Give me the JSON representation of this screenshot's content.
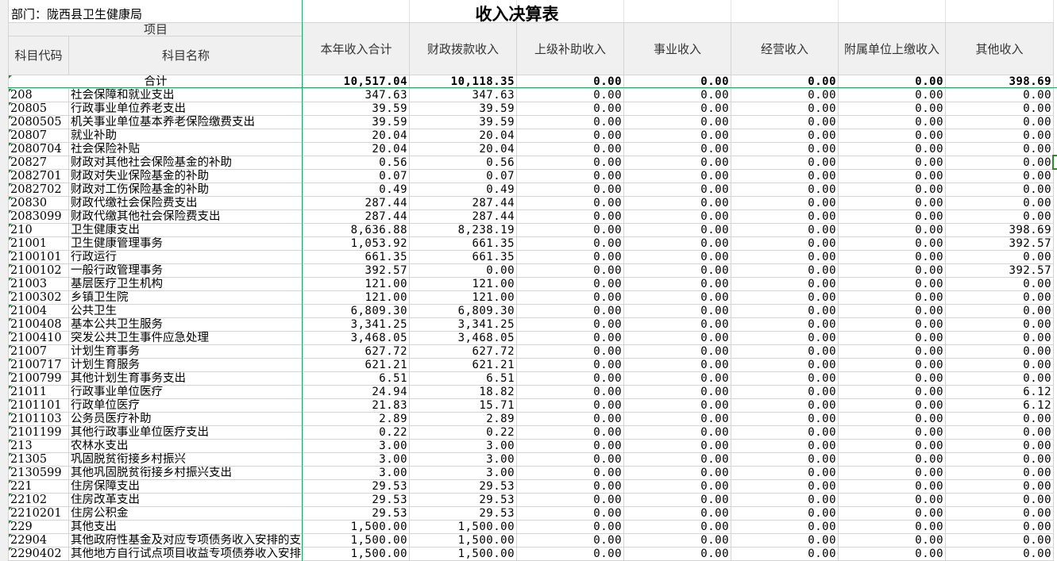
{
  "title": "收入决算表",
  "department": "部门：陇西县卫生健康局",
  "header": {
    "project": "项目",
    "code": "科目代码",
    "name": "科目名称",
    "columns": [
      "本年收入合计",
      "财政拨款收入",
      "上级补助收入",
      "事业收入",
      "经营收入",
      "附属单位上缴收入",
      "其他收入"
    ]
  },
  "total": {
    "label": "合计",
    "values": [
      "10,517.04",
      "10,118.35",
      "0.00",
      "0.00",
      "0.00",
      "0.00",
      "398.69"
    ]
  },
  "rows": [
    [
      "208",
      "社会保障和就业支出",
      "347.63",
      "347.63",
      "0.00",
      "0.00",
      "0.00",
      "0.00",
      "0.00"
    ],
    [
      "20805",
      "行政事业单位养老支出",
      "39.59",
      "39.59",
      "0.00",
      "0.00",
      "0.00",
      "0.00",
      "0.00"
    ],
    [
      "2080505",
      "机关事业单位基本养老保险缴费支出",
      "39.59",
      "39.59",
      "0.00",
      "0.00",
      "0.00",
      "0.00",
      "0.00"
    ],
    [
      "20807",
      "就业补助",
      "20.04",
      "20.04",
      "0.00",
      "0.00",
      "0.00",
      "0.00",
      "0.00"
    ],
    [
      "2080704",
      "社会保险补贴",
      "20.04",
      "20.04",
      "0.00",
      "0.00",
      "0.00",
      "0.00",
      "0.00"
    ],
    [
      "20827",
      "财政对其他社会保险基金的补助",
      "0.56",
      "0.56",
      "0.00",
      "0.00",
      "0.00",
      "0.00",
      "0.00"
    ],
    [
      "2082701",
      "财政对失业保险基金的补助",
      "0.07",
      "0.07",
      "0.00",
      "0.00",
      "0.00",
      "0.00",
      "0.00"
    ],
    [
      "2082702",
      "财政对工伤保险基金的补助",
      "0.49",
      "0.49",
      "0.00",
      "0.00",
      "0.00",
      "0.00",
      "0.00"
    ],
    [
      "20830",
      "财政代缴社会保险费支出",
      "287.44",
      "287.44",
      "0.00",
      "0.00",
      "0.00",
      "0.00",
      "0.00"
    ],
    [
      "2083099",
      "财政代缴其他社会保险费支出",
      "287.44",
      "287.44",
      "0.00",
      "0.00",
      "0.00",
      "0.00",
      "0.00"
    ],
    [
      "210",
      "卫生健康支出",
      "8,636.88",
      "8,238.19",
      "0.00",
      "0.00",
      "0.00",
      "0.00",
      "398.69"
    ],
    [
      "21001",
      "卫生健康管理事务",
      "1,053.92",
      "661.35",
      "0.00",
      "0.00",
      "0.00",
      "0.00",
      "392.57"
    ],
    [
      "2100101",
      "行政运行",
      "661.35",
      "661.35",
      "0.00",
      "0.00",
      "0.00",
      "0.00",
      "0.00"
    ],
    [
      "2100102",
      "一般行政管理事务",
      "392.57",
      "0.00",
      "0.00",
      "0.00",
      "0.00",
      "0.00",
      "392.57"
    ],
    [
      "21003",
      "基层医疗卫生机构",
      "121.00",
      "121.00",
      "0.00",
      "0.00",
      "0.00",
      "0.00",
      "0.00"
    ],
    [
      "2100302",
      "乡镇卫生院",
      "121.00",
      "121.00",
      "0.00",
      "0.00",
      "0.00",
      "0.00",
      "0.00"
    ],
    [
      "21004",
      "公共卫生",
      "6,809.30",
      "6,809.30",
      "0.00",
      "0.00",
      "0.00",
      "0.00",
      "0.00"
    ],
    [
      "2100408",
      "基本公共卫生服务",
      "3,341.25",
      "3,341.25",
      "0.00",
      "0.00",
      "0.00",
      "0.00",
      "0.00"
    ],
    [
      "2100410",
      "突发公共卫生事件应急处理",
      "3,468.05",
      "3,468.05",
      "0.00",
      "0.00",
      "0.00",
      "0.00",
      "0.00"
    ],
    [
      "21007",
      "计划生育事务",
      "627.72",
      "627.72",
      "0.00",
      "0.00",
      "0.00",
      "0.00",
      "0.00"
    ],
    [
      "2100717",
      "计划生育服务",
      "621.21",
      "621.21",
      "0.00",
      "0.00",
      "0.00",
      "0.00",
      "0.00"
    ],
    [
      "2100799",
      "其他计划生育事务支出",
      "6.51",
      "6.51",
      "0.00",
      "0.00",
      "0.00",
      "0.00",
      "0.00"
    ],
    [
      "21011",
      "行政事业单位医疗",
      "24.94",
      "18.82",
      "0.00",
      "0.00",
      "0.00",
      "0.00",
      "6.12"
    ],
    [
      "2101101",
      "行政单位医疗",
      "21.83",
      "15.71",
      "0.00",
      "0.00",
      "0.00",
      "0.00",
      "6.12"
    ],
    [
      "2101103",
      "公务员医疗补助",
      "2.89",
      "2.89",
      "0.00",
      "0.00",
      "0.00",
      "0.00",
      "0.00"
    ],
    [
      "2101199",
      "其他行政事业单位医疗支出",
      "0.22",
      "0.22",
      "0.00",
      "0.00",
      "0.00",
      "0.00",
      "0.00"
    ],
    [
      "213",
      "农林水支出",
      "3.00",
      "3.00",
      "0.00",
      "0.00",
      "0.00",
      "0.00",
      "0.00"
    ],
    [
      "21305",
      "巩固脱贫衔接乡村振兴",
      "3.00",
      "3.00",
      "0.00",
      "0.00",
      "0.00",
      "0.00",
      "0.00"
    ],
    [
      "2130599",
      "其他巩固脱贫衔接乡村振兴支出",
      "3.00",
      "3.00",
      "0.00",
      "0.00",
      "0.00",
      "0.00",
      "0.00"
    ],
    [
      "221",
      "住房保障支出",
      "29.53",
      "29.53",
      "0.00",
      "0.00",
      "0.00",
      "0.00",
      "0.00"
    ],
    [
      "22102",
      "住房改革支出",
      "29.53",
      "29.53",
      "0.00",
      "0.00",
      "0.00",
      "0.00",
      "0.00"
    ],
    [
      "2210201",
      "住房公积金",
      "29.53",
      "29.53",
      "0.00",
      "0.00",
      "0.00",
      "0.00",
      "0.00"
    ],
    [
      "229",
      "其他支出",
      "1,500.00",
      "1,500.00",
      "0.00",
      "0.00",
      "0.00",
      "0.00",
      "0.00"
    ],
    [
      "22904",
      "其他政府性基金及对应专项债务收入安排的支出",
      "1,500.00",
      "1,500.00",
      "0.00",
      "0.00",
      "0.00",
      "0.00",
      "0.00"
    ],
    [
      "2290402",
      "其他地方自行试点项目收益专项债券收入安排的支出",
      "1,500.00",
      "1,500.00",
      "0.00",
      "0.00",
      "0.00",
      "0.00",
      "0.00"
    ]
  ]
}
